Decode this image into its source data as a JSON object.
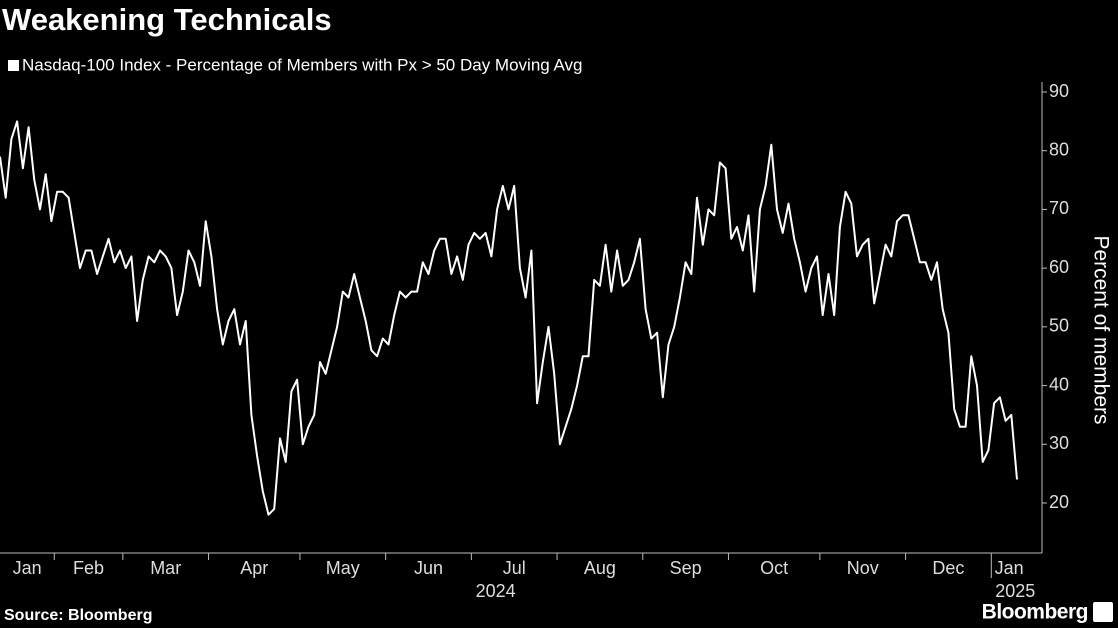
{
  "chart_data": {
    "type": "line",
    "title": "Weakening Technicals",
    "source": "Source: Bloomberg",
    "brand": "Bloomberg",
    "y_label": "Percent of members",
    "years": [
      "2024",
      "2025"
    ],
    "series": [
      {
        "name": "Nasdaq-100 Index - Percentage of Members with Px > 50 Day Moving Avg",
        "color": "#ffffff",
        "values": [
          79,
          72,
          82,
          85,
          77,
          84,
          75,
          70,
          76,
          68,
          73,
          73,
          72,
          66,
          60,
          63,
          63,
          59,
          62,
          65,
          61,
          63,
          60,
          62,
          51,
          58,
          62,
          61,
          63,
          62,
          60,
          52,
          56,
          63,
          61,
          57,
          68,
          62,
          53,
          47,
          51,
          53,
          47,
          51,
          35,
          28,
          22,
          18,
          19,
          31,
          27,
          39,
          41,
          30,
          33,
          35,
          44,
          42,
          46,
          50,
          56,
          55,
          59,
          55,
          51,
          46,
          45,
          48,
          47,
          52,
          56,
          55,
          56,
          56,
          61,
          59,
          63,
          65,
          65,
          59,
          62,
          58,
          64,
          66,
          65,
          66,
          62,
          70,
          74,
          70,
          74,
          60,
          55,
          63,
          37,
          44,
          50,
          42,
          30,
          33,
          36,
          40,
          45,
          45,
          58,
          57,
          64,
          56,
          63,
          57,
          58,
          61,
          65,
          53,
          48,
          49,
          38,
          47,
          50,
          55,
          61,
          59,
          72,
          64,
          70,
          69,
          78,
          77,
          65,
          67,
          63,
          69,
          56,
          70,
          74,
          81,
          70,
          66,
          71,
          65,
          61,
          56,
          60,
          62,
          52,
          59,
          52,
          67,
          73,
          71,
          62,
          64,
          65,
          54,
          59,
          64,
          62,
          68,
          69,
          69,
          65,
          61,
          61,
          58,
          61,
          53,
          49,
          36,
          33,
          33,
          45,
          40,
          27,
          29,
          37,
          38,
          34,
          35,
          24
        ]
      }
    ],
    "categories": [
      "Jan",
      null,
      null,
      null,
      null,
      null,
      null,
      null,
      null,
      null,
      "Feb",
      null,
      null,
      null,
      null,
      null,
      null,
      null,
      null,
      null,
      null,
      null,
      "Mar",
      null,
      null,
      null,
      null,
      null,
      null,
      null,
      null,
      null,
      null,
      null,
      null,
      null,
      null,
      "Apr",
      null,
      null,
      null,
      null,
      null,
      null,
      null,
      null,
      null,
      null,
      null,
      null,
      null,
      null,
      null,
      "May",
      null,
      null,
      null,
      null,
      null,
      null,
      null,
      null,
      null,
      null,
      null,
      null,
      null,
      null,
      "Jun",
      null,
      null,
      null,
      null,
      null,
      null,
      null,
      null,
      null,
      null,
      null,
      null,
      null,
      null,
      "Jul",
      null,
      null,
      null,
      null,
      null,
      null,
      null,
      null,
      null,
      null,
      null,
      null,
      null,
      null,
      "Aug",
      null,
      null,
      null,
      null,
      null,
      null,
      null,
      null,
      null,
      null,
      null,
      null,
      null,
      null,
      "Sep",
      null,
      null,
      null,
      null,
      null,
      null,
      null,
      null,
      null,
      null,
      null,
      null,
      null,
      null,
      "Oct",
      null,
      null,
      null,
      null,
      null,
      null,
      null,
      null,
      null,
      null,
      null,
      null,
      null,
      null,
      null,
      "Nov",
      null,
      null,
      null,
      null,
      null,
      null,
      null,
      null,
      null,
      null,
      null,
      null,
      null,
      null,
      "Dec",
      null,
      null,
      null,
      null,
      null,
      null,
      null,
      null,
      null,
      null,
      null,
      null,
      null,
      null,
      "Jan",
      null,
      null,
      null,
      null
    ],
    "ylim": [
      12,
      92
    ],
    "yticks": [
      20,
      30,
      40,
      50,
      60,
      70,
      80,
      90
    ],
    "grid": false
  }
}
